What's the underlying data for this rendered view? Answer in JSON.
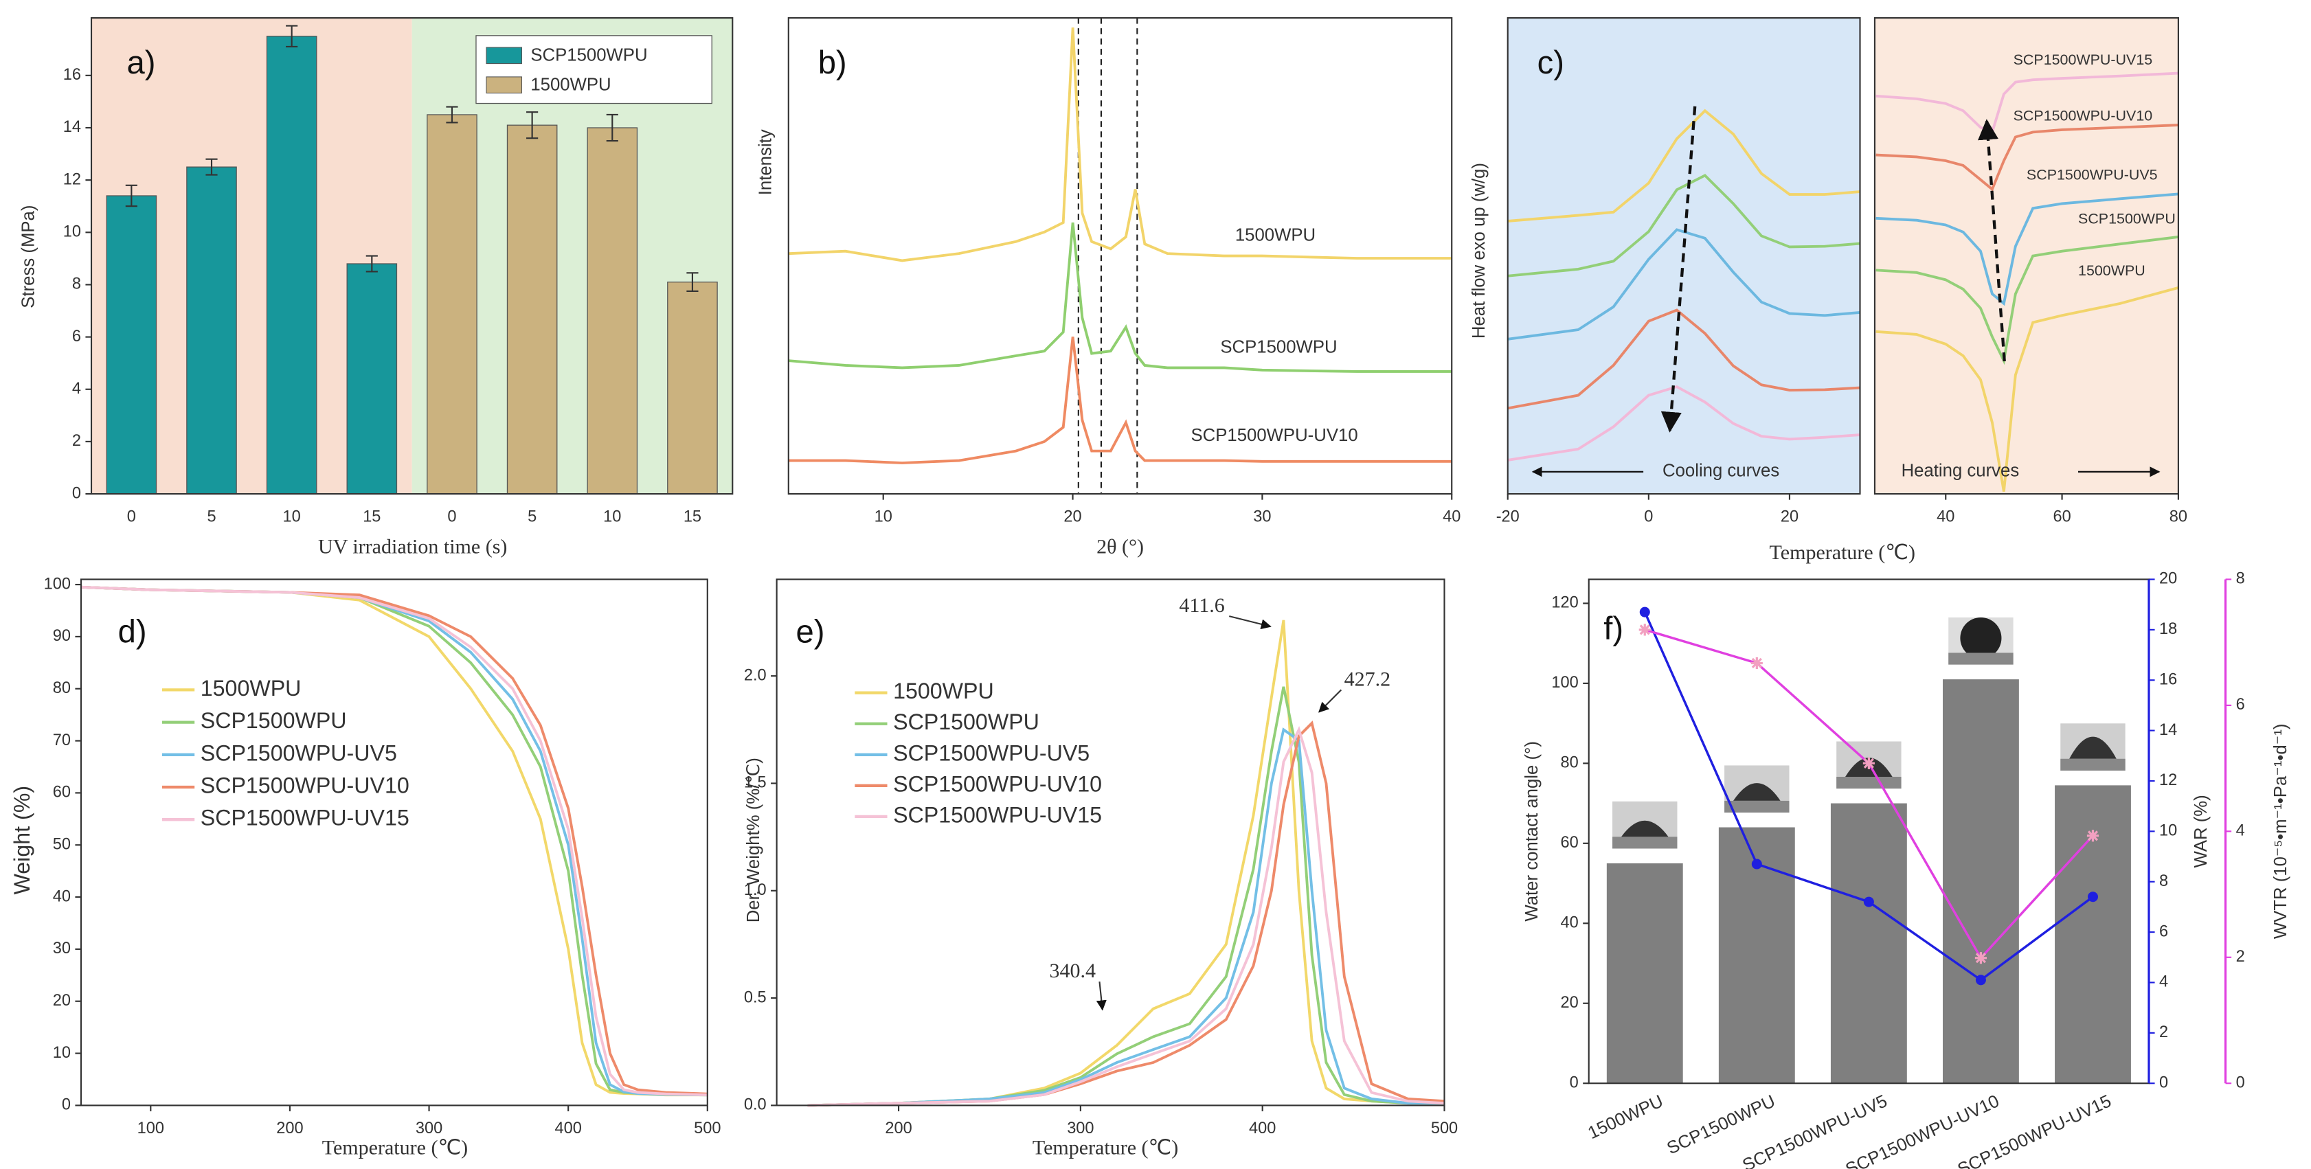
{
  "chart_data": [
    {
      "type": "bar",
      "label": "a)",
      "categories": [
        "0",
        "5",
        "10",
        "15",
        "0",
        "5",
        "10",
        "15"
      ],
      "series": [
        {
          "name": "SCP1500WPU",
          "color": "#17979b",
          "values": [
            11.4,
            12.5,
            17.5,
            8.8,
            null,
            null,
            null,
            null
          ],
          "errors": [
            0.4,
            0.3,
            0.4,
            0.3,
            null,
            null,
            null,
            null
          ]
        },
        {
          "name": "1500WPU",
          "color": "#cbb27f",
          "values": [
            null,
            null,
            null,
            null,
            14.5,
            14.1,
            14.0,
            8.1
          ],
          "errors": [
            null,
            null,
            null,
            null,
            0.3,
            0.5,
            0.5,
            0.35
          ]
        }
      ],
      "ylim": [
        0,
        18.2
      ],
      "yticks": [
        0,
        2,
        4,
        6,
        8,
        10,
        12,
        14,
        16
      ],
      "xlabel": "UV  irradiation time (s)",
      "ylabel": "Stress (MPa)",
      "legend": "upper right"
    },
    {
      "type": "line",
      "label": "b)",
      "x": [
        5,
        8,
        11,
        14,
        17,
        18.5,
        19.5,
        20,
        20.5,
        21,
        22,
        22.8,
        23.3,
        23.8,
        25,
        28,
        30,
        35,
        40
      ],
      "series": [
        {
          "name": "1500WPU",
          "color": "#f2d46a",
          "values": [
            50.5,
            51,
            49,
            50.5,
            53,
            55,
            57,
            98,
            59,
            53,
            51.5,
            54,
            64,
            52.5,
            50.5,
            50,
            50,
            49.5,
            49.5
          ]
        },
        {
          "name": "SCP1500WPU",
          "color": "#8fcf6f",
          "values": [
            28,
            27,
            26.5,
            27,
            29,
            30,
            34,
            57,
            37,
            29.5,
            30,
            35,
            29.5,
            27,
            26.5,
            26.5,
            26,
            25.7,
            25.7
          ]
        },
        {
          "name": "SCP1500WPU-UV10",
          "color": "#ef8a62",
          "values": [
            7,
            7,
            6.5,
            7,
            9,
            11,
            14,
            33,
            15.5,
            9,
            9,
            15,
            9,
            7,
            7,
            7,
            6.8,
            6.8,
            6.8
          ]
        }
      ],
      "xlim": [
        5,
        40
      ],
      "xticks": [
        10,
        20,
        30,
        40
      ],
      "ylim": [
        0,
        100
      ],
      "vlines": [
        20.3,
        21.5,
        23.4
      ],
      "xlabel": "2θ (°)",
      "ylabel": "Intensity"
    },
    {
      "type": "line",
      "label": "c)",
      "x": [
        -20,
        -10,
        -5,
        0,
        4,
        8,
        12,
        16,
        20,
        25,
        30
      ],
      "series": [
        {
          "color": "#f2d46a",
          "values": [
            57.3,
            58.5,
            59.2,
            65.3,
            74.6,
            80.5,
            75.6,
            67.3,
            62.9,
            62.9,
            63.5
          ]
        },
        {
          "color": "#93cf78",
          "values": [
            45.8,
            47.2,
            48.9,
            55.1,
            63.9,
            66.9,
            61.0,
            54.2,
            51.9,
            52.0,
            52.6
          ]
        },
        {
          "color": "#6cb8e0",
          "values": [
            32.5,
            34.5,
            39.3,
            49.3,
            55.5,
            53.7,
            46.6,
            40.3,
            37.9,
            37.5,
            38.1
          ]
        },
        {
          "color": "#e8866a",
          "values": [
            18.0,
            20.7,
            27.0,
            36.3,
            38.6,
            33.7,
            26.9,
            22.9,
            21.8,
            21.9,
            22.3
          ]
        },
        {
          "color": "#f2b8d8",
          "values": [
            7.1,
            9.4,
            14.1,
            20.7,
            22.5,
            19.3,
            14.8,
            12.1,
            11.5,
            11.9,
            12.4
          ]
        }
      ],
      "xlim": [
        -20,
        30
      ],
      "xticks": [
        -20,
        0,
        20
      ],
      "ylim": [
        0,
        100
      ],
      "xlabel": "Temperature (℃)",
      "ylabel": "Heat flow exo up (w/g)",
      "annotation": "Cooling curves"
    },
    {
      "type": "line",
      "x": [
        28,
        35,
        40,
        43,
        46,
        48,
        50,
        52,
        55,
        60,
        70,
        80
      ],
      "series": [
        {
          "name": "1500WPU",
          "color": "#f2d46a",
          "values": [
            34.1,
            33.5,
            31.5,
            29,
            24,
            15,
            0.5,
            25,
            36,
            37.5,
            40,
            43.3
          ]
        },
        {
          "name": "SCP1500WPU",
          "color": "#93cf78",
          "values": [
            47,
            46.5,
            45,
            43,
            39,
            33,
            28,
            42,
            50,
            51,
            52.5,
            54
          ]
        },
        {
          "name": "SCP1500WPU-UV5",
          "color": "#6cb8e0",
          "values": [
            57.9,
            57.5,
            56.5,
            55,
            51,
            42,
            40,
            52,
            60,
            61,
            62,
            63
          ]
        },
        {
          "name": "SCP1500WPU-UV10",
          "color": "#e8866a",
          "values": [
            71.2,
            70.8,
            70,
            69,
            66,
            64,
            70,
            75,
            76,
            76.5,
            77,
            77.5
          ]
        },
        {
          "name": "SCP1500WPU-UV15",
          "color": "#f2b8d8",
          "values": [
            83.6,
            83,
            82,
            80.5,
            77,
            76,
            84,
            86.5,
            87,
            87.3,
            87.8,
            88.4
          ]
        }
      ],
      "xlim": [
        27.8,
        80
      ],
      "xticks": [
        40,
        60,
        80
      ],
      "ylim": [
        0,
        100
      ],
      "annotation": "Heating curves"
    },
    {
      "type": "line",
      "label": "d)",
      "x": [
        50,
        100,
        200,
        250,
        300,
        330,
        360,
        380,
        400,
        410,
        420,
        430,
        440,
        450,
        470,
        500
      ],
      "series": [
        {
          "name": "1500WPU",
          "color": "#f2d86a",
          "values": [
            99.5,
            99,
            98.5,
            97,
            90,
            80,
            68,
            55,
            30,
            12,
            4,
            2.5,
            2.3,
            2.2,
            2,
            2
          ]
        },
        {
          "name": "SCP1500WPU",
          "color": "#93cf78",
          "values": [
            99.5,
            99,
            98.5,
            97.5,
            92,
            85,
            75,
            65,
            45,
            25,
            8,
            3,
            2.5,
            2.3,
            2.1,
            2
          ]
        },
        {
          "name": "SCP1500WPU-UV5",
          "color": "#73bfe6",
          "values": [
            99.5,
            99,
            98.5,
            97.5,
            93,
            87,
            78,
            68,
            50,
            32,
            12,
            4,
            2.6,
            2.3,
            2.1,
            2
          ]
        },
        {
          "name": "SCP1500WPU-UV10",
          "color": "#ee8a6a",
          "values": [
            99.5,
            99,
            98.5,
            98,
            94,
            90,
            82,
            73,
            57,
            42,
            25,
            10,
            4,
            3,
            2.5,
            2.2
          ]
        },
        {
          "name": "SCP1500WPU-UV15",
          "color": "#f5c2d6",
          "values": [
            99.5,
            99,
            98.5,
            97.5,
            93.5,
            88,
            80,
            70,
            53,
            36,
            17,
            6,
            3,
            2.5,
            2.2,
            2
          ]
        }
      ],
      "xlim": [
        50,
        500
      ],
      "xticks": [
        100,
        200,
        300,
        400,
        500
      ],
      "ylim": [
        0,
        101
      ],
      "yticks": [
        0,
        10,
        20,
        30,
        40,
        50,
        60,
        70,
        80,
        90,
        100
      ],
      "xlabel": "Temperature (℃)",
      "ylabel": "Weight      (%)",
      "legend": "center"
    },
    {
      "type": "line",
      "label": "e)",
      "x": [
        150,
        200,
        250,
        280,
        300,
        320,
        340,
        360,
        380,
        395,
        405,
        411.6,
        420,
        427.2,
        435,
        445,
        460,
        480,
        500
      ],
      "series": [
        {
          "name": "1500WPU",
          "color": "#f2d86a",
          "values": [
            0,
            0.01,
            0.03,
            0.08,
            0.15,
            0.28,
            0.45,
            0.52,
            0.75,
            1.35,
            1.9,
            2.26,
            1.0,
            0.3,
            0.08,
            0.03,
            0.02,
            0.01,
            0.01
          ]
        },
        {
          "name": "SCP1500WPU",
          "color": "#93cf78",
          "values": [
            0,
            0.01,
            0.03,
            0.07,
            0.13,
            0.24,
            0.32,
            0.38,
            0.6,
            1.1,
            1.65,
            1.95,
            1.6,
            0.7,
            0.2,
            0.05,
            0.02,
            0.01,
            0.01
          ]
        },
        {
          "name": "SCP1500WPU-UV5",
          "color": "#73bfe6",
          "values": [
            0,
            0.01,
            0.03,
            0.06,
            0.12,
            0.2,
            0.26,
            0.32,
            0.5,
            0.9,
            1.5,
            1.75,
            1.7,
            1.0,
            0.35,
            0.08,
            0.03,
            0.01,
            0.01
          ]
        },
        {
          "name": "SCP1500WPU-UV10",
          "color": "#ee8a6a",
          "values": [
            0,
            0.01,
            0.02,
            0.05,
            0.1,
            0.16,
            0.2,
            0.28,
            0.4,
            0.65,
            1.0,
            1.4,
            1.72,
            1.78,
            1.5,
            0.6,
            0.1,
            0.03,
            0.02
          ]
        },
        {
          "name": "SCP1500WPU-UV15",
          "color": "#f5c2d6",
          "values": [
            0,
            0.01,
            0.02,
            0.05,
            0.11,
            0.18,
            0.24,
            0.3,
            0.45,
            0.75,
            1.2,
            1.6,
            1.75,
            1.55,
            0.9,
            0.3,
            0.06,
            0.02,
            0.01
          ]
        }
      ],
      "xlim": [
        133,
        500
      ],
      "xticks": [
        200,
        300,
        400,
        500
      ],
      "ylim": [
        0,
        2.45
      ],
      "yticks": [
        {
          "value": 0,
          "label": "0.0"
        },
        0.5,
        {
          "value": 1,
          "label": "1.0"
        },
        1.5,
        {
          "value": 2,
          "label": "2.0"
        }
      ],
      "xlabel": "Temperature (℃)",
      "ylabel": "Der. Weight%   (%/℃)",
      "legend": "center left",
      "annotations": [
        "411.6",
        "427.2",
        "340.4"
      ]
    },
    {
      "type": "bar",
      "label": "f)",
      "categories": [
        "1500WPU",
        "SCP1500WPU",
        "SCP1500WPU-UV5",
        "SCP1500WPU-UV10",
        "SCP1500WPU-UV15"
      ],
      "series": [
        {
          "type": "bar",
          "color": "#7f7f7f",
          "values": [
            55,
            64,
            70,
            101,
            74.5
          ]
        },
        {
          "type": "line",
          "color": "#1f1fe0",
          "axis": "y2",
          "values": [
            18.7,
            8.7,
            7.2,
            4.1,
            7.4
          ]
        },
        {
          "type": "line",
          "color": "#e040e0",
          "axis": "y3",
          "values": [
            7.2,
            6.67,
            5.08,
            1.99,
            3.93
          ]
        }
      ],
      "ylim": [
        0,
        126
      ],
      "yticks": [
        0,
        20,
        40,
        60,
        80,
        100,
        120
      ],
      "y2lim": [
        0,
        20
      ],
      "y2ticks": [
        0,
        2,
        4,
        6,
        8,
        10,
        12,
        14,
        16,
        18,
        20
      ],
      "y3lim": [
        0,
        8
      ],
      "y3ticks": [
        0,
        2,
        4,
        6,
        8
      ],
      "ylabel": "Water contact angle (°)",
      "y2label": "WAR (%)",
      "y3label": "WVTR (10⁻⁵•m⁻¹•Pa⁻¹•d⁻¹)"
    }
  ]
}
